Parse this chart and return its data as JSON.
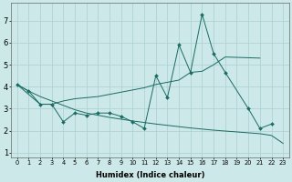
{
  "xlabel": "Humidex (Indice chaleur)",
  "bg_color": "#cce8e8",
  "line_color": "#1a6b62",
  "grid_color": "#aacfcf",
  "x_values": [
    0,
    1,
    2,
    3,
    4,
    5,
    6,
    7,
    8,
    9,
    10,
    11,
    12,
    13,
    14,
    15,
    16,
    17,
    18,
    19,
    20,
    21,
    22,
    23
  ],
  "line_spiky_x": [
    0,
    1,
    2,
    3,
    4,
    5,
    6,
    7,
    8,
    9,
    10,
    11,
    12,
    13,
    14,
    15,
    16,
    17,
    18,
    20,
    21,
    22
  ],
  "line_spiky_y": [
    4.1,
    3.8,
    3.2,
    3.2,
    2.4,
    2.8,
    2.7,
    2.8,
    2.8,
    2.65,
    2.4,
    2.1,
    4.5,
    3.5,
    5.9,
    4.65,
    7.3,
    5.5,
    4.65,
    3.0,
    2.1,
    2.3
  ],
  "line_decrease_x": [
    0,
    1,
    2,
    3,
    4,
    5,
    6,
    7,
    8,
    9,
    10,
    11,
    12,
    13,
    14,
    15,
    16,
    17,
    18,
    19,
    20,
    21,
    22,
    23
  ],
  "line_decrease_y": [
    4.1,
    3.8,
    3.55,
    3.35,
    3.15,
    2.95,
    2.8,
    2.7,
    2.6,
    2.52,
    2.44,
    2.37,
    2.3,
    2.24,
    2.18,
    2.12,
    2.07,
    2.02,
    1.98,
    1.94,
    1.9,
    1.86,
    1.78,
    1.42
  ],
  "line_increase_x": [
    0,
    2,
    3,
    4,
    5,
    6,
    7,
    8,
    9,
    10,
    11,
    12,
    13,
    14,
    15,
    16,
    17,
    18,
    21
  ],
  "line_increase_y": [
    4.1,
    3.2,
    3.2,
    3.35,
    3.45,
    3.5,
    3.55,
    3.65,
    3.75,
    3.85,
    3.95,
    4.1,
    4.2,
    4.3,
    4.65,
    4.7,
    5.0,
    5.35,
    5.3
  ],
  "ylim": [
    0.8,
    7.8
  ],
  "xlim": [
    -0.5,
    23.5
  ],
  "yticks": [
    1,
    2,
    3,
    4,
    5,
    6,
    7
  ],
  "xticks": [
    0,
    1,
    2,
    3,
    4,
    5,
    6,
    7,
    8,
    9,
    10,
    11,
    12,
    13,
    14,
    15,
    16,
    17,
    18,
    19,
    20,
    21,
    22,
    23
  ],
  "xlabel_fontsize": 6.0,
  "tick_fontsize_x": 4.8,
  "tick_fontsize_y": 6.0
}
